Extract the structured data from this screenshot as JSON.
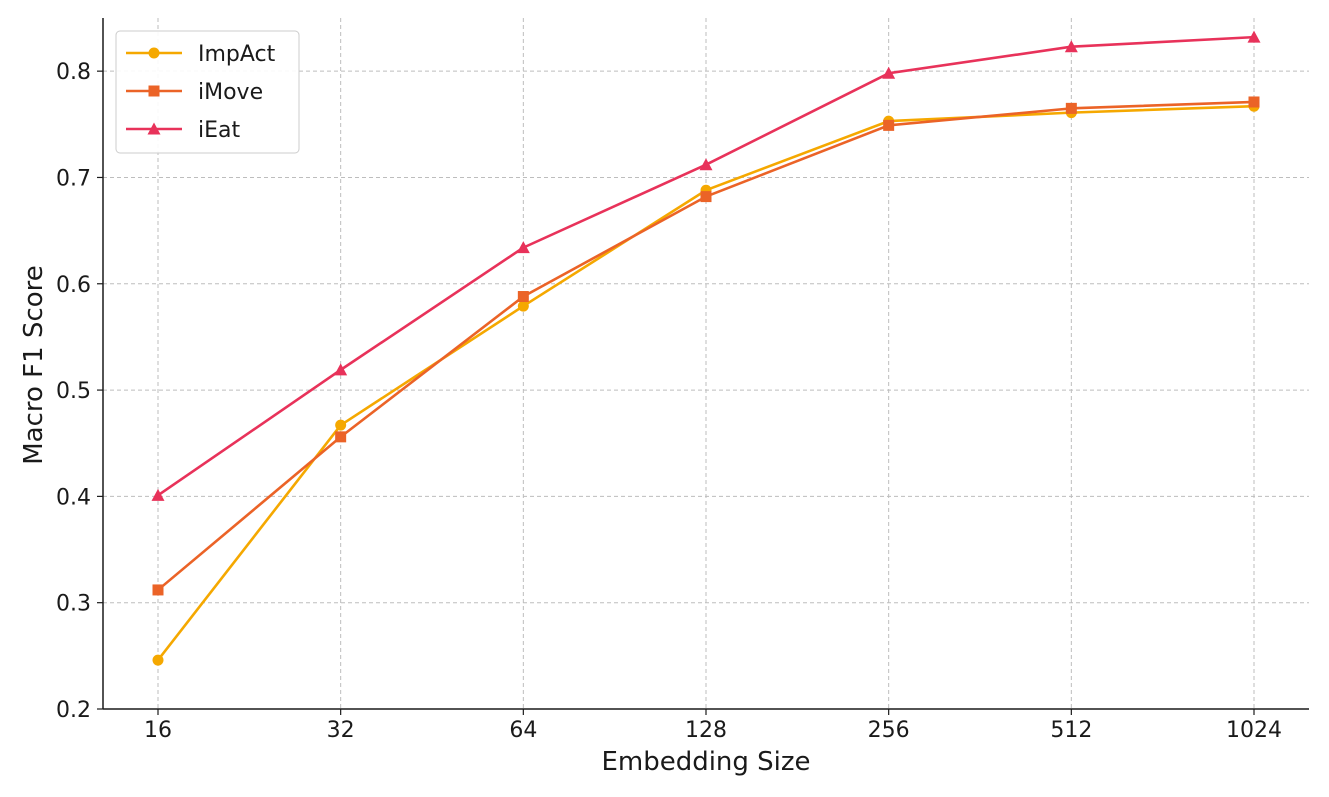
{
  "chart_data": {
    "type": "line",
    "title": "",
    "xlabel": "Embedding Size",
    "ylabel": "Macro F1 Score",
    "categories": [
      "16",
      "32",
      "64",
      "128",
      "256",
      "512",
      "1024"
    ],
    "ylim": [
      0.2,
      0.85
    ],
    "yticks": [
      0.2,
      0.3,
      0.4,
      0.5,
      0.6,
      0.7,
      0.8
    ],
    "ytick_labels": [
      "0.2",
      "0.3",
      "0.4",
      "0.5",
      "0.6",
      "0.7",
      "0.8"
    ],
    "grid": true,
    "legend_position": "top-left",
    "series": [
      {
        "name": "ImpAct",
        "color": "#f5a800",
        "marker": "circle",
        "values": [
          0.246,
          0.467,
          0.579,
          0.688,
          0.753,
          0.761,
          0.767
        ]
      },
      {
        "name": "iMove",
        "color": "#eb6327",
        "marker": "square",
        "values": [
          0.312,
          0.456,
          0.588,
          0.682,
          0.749,
          0.765,
          0.771
        ]
      },
      {
        "name": "iEat",
        "color": "#e8325a",
        "marker": "triangle",
        "values": [
          0.401,
          0.519,
          0.634,
          0.712,
          0.798,
          0.823,
          0.832
        ]
      }
    ]
  }
}
